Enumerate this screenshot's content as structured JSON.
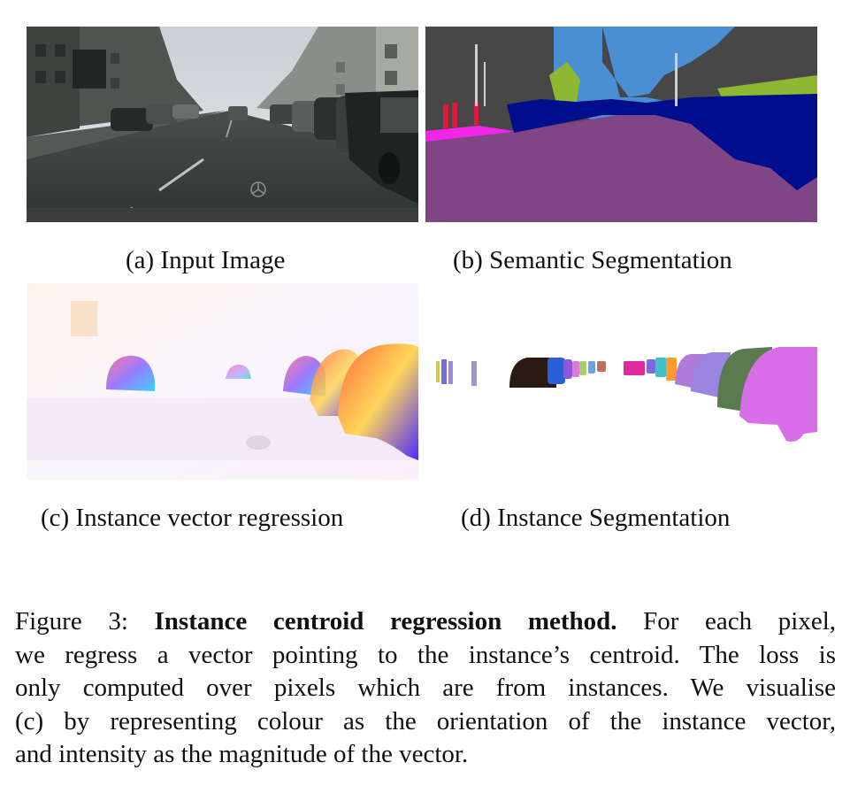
{
  "figure": {
    "panels": [
      {
        "id": "a",
        "caption": "(a) Input Image"
      },
      {
        "id": "b",
        "caption": "(b) Semantic Segmentation"
      },
      {
        "id": "c",
        "caption": "(c) Instance vector regression"
      },
      {
        "id": "d",
        "caption": "(d) Instance Segmentation"
      }
    ],
    "caption": {
      "label": "Figure 3:",
      "title": "Instance centroid regression method.",
      "line1_rest": "For each pixel,",
      "line2": "we regress a vector pointing to the instance’s centroid. The loss is",
      "line3": "only computed over pixels which are from instances. We visualise",
      "line4": "(c) by representing colour as the orientation of the instance vector,",
      "line5": "and intensity as the magnitude of the vector."
    }
  },
  "colors": {
    "road": "#7f4584",
    "sky": "#4a8fd2",
    "building": "#474747",
    "car": "#000e8d",
    "sidewalk": "#f226e8",
    "vegetation": "#8fb832",
    "person": "#dc1a3c"
  }
}
